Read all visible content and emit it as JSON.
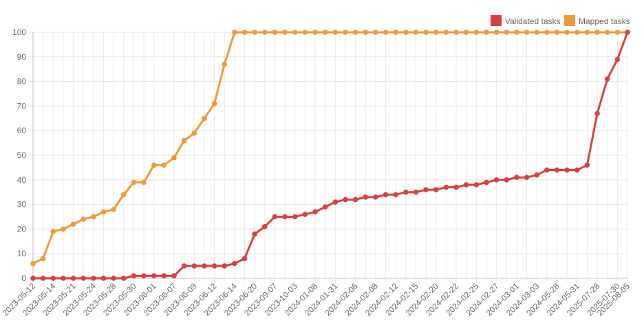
{
  "chart_data": {
    "type": "line",
    "ylim": [
      0,
      100
    ],
    "y_ticks": [
      0,
      10,
      20,
      30,
      40,
      50,
      60,
      70,
      80,
      90,
      100
    ],
    "grid": true,
    "legend_position": "top-right",
    "x_tick_labels": [
      "2023-05-12",
      "2023-05-14",
      "2023-05-21",
      "2023-05-24",
      "2023-05-28",
      "2023-05-30",
      "2023-06-01",
      "2023-06-07",
      "2023-06-09",
      "2023-06-12",
      "2023-06-14",
      "2023-06-20",
      "2023-09-07",
      "2023-10-03",
      "2024-01-08",
      "2024-01-31",
      "2024-02-06",
      "2024-02-08",
      "2024-02-12",
      "2024-02-15",
      "2024-02-20",
      "2024-02-22",
      "2024-02-25",
      "2024-02-27",
      "2024-03-01",
      "2024-03-03",
      "2024-05-28",
      "2024-05-31",
      "2025-07-28",
      "2025-07-30",
      "2025-08-05"
    ],
    "series": [
      {
        "name": "Validated tasks",
        "color": "#d94040",
        "values": [
          0,
          0,
          0,
          0,
          0,
          0,
          0,
          0,
          0,
          0,
          1,
          1,
          1,
          1,
          1,
          5,
          5,
          5,
          5,
          5,
          6,
          8,
          18,
          21,
          25,
          25,
          25,
          26,
          27,
          29,
          31,
          32,
          32,
          33,
          33,
          34,
          34,
          35,
          35,
          36,
          36,
          37,
          37,
          38,
          38,
          39,
          40,
          40,
          41,
          41,
          42,
          44,
          44,
          44,
          44,
          46,
          67,
          81,
          89,
          100
        ]
      },
      {
        "name": "Mapped tasks",
        "color": "#f0993a",
        "values": [
          6,
          8,
          19,
          20,
          22,
          24,
          25,
          27,
          28,
          34,
          39,
          39,
          46,
          46,
          49,
          56,
          59,
          65,
          71,
          87,
          100,
          100,
          100,
          100,
          100,
          100,
          100,
          100,
          100,
          100,
          100,
          100,
          100,
          100,
          100,
          100,
          100,
          100,
          100,
          100,
          100,
          100,
          100,
          100,
          100,
          100,
          100,
          100,
          100,
          100,
          100,
          100,
          100,
          100,
          100,
          100,
          100,
          100,
          100,
          100
        ]
      }
    ],
    "legend": [
      {
        "label": "Validated tasks",
        "color": "#d94040"
      },
      {
        "label": "Mapped tasks",
        "color": "#f0993a"
      }
    ]
  }
}
